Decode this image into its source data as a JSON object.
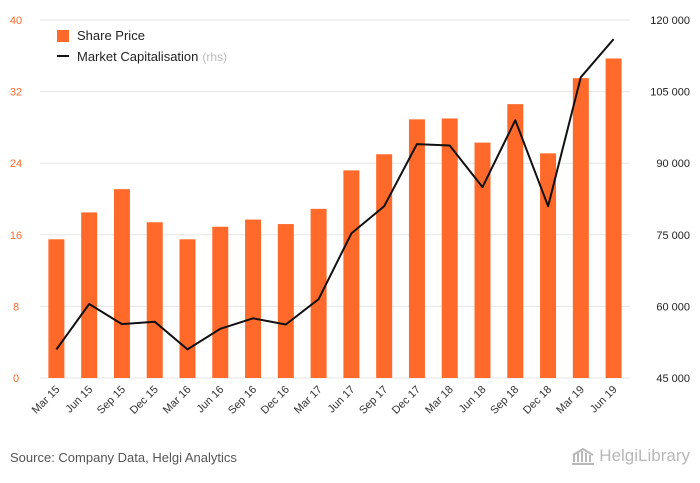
{
  "chart_data": {
    "type": "bar",
    "categories": [
      "Mar 15",
      "Jun 15",
      "Sep 15",
      "Dec 15",
      "Mar 16",
      "Jun 16",
      "Sep 16",
      "Dec 16",
      "Mar 17",
      "Jun 17",
      "Sep 17",
      "Dec 17",
      "Mar 18",
      "Jun 18",
      "Sep 18",
      "Dec 18",
      "Mar 19",
      "Jun 19"
    ],
    "series": [
      {
        "name": "Share Price",
        "type": "bar",
        "axis": "left",
        "color": "#ff6a2b",
        "values": [
          15.5,
          18.5,
          21.1,
          17.4,
          15.5,
          16.9,
          17.7,
          17.2,
          18.9,
          23.2,
          25.0,
          28.9,
          29.0,
          26.3,
          30.6,
          25.1,
          33.5,
          35.7
        ]
      },
      {
        "name": "Market Capitalisation",
        "suffix": "(rhs)",
        "type": "line",
        "axis": "right",
        "color": "#111111",
        "values": [
          51000,
          60500,
          56300,
          56800,
          51000,
          55300,
          57500,
          56200,
          61500,
          75300,
          81000,
          94000,
          93700,
          85000,
          99000,
          81000,
          108000,
          116000
        ]
      }
    ],
    "y_left": {
      "min": 0,
      "max": 40,
      "ticks": [
        0,
        8,
        16,
        24,
        32,
        40
      ],
      "tick_labels": [
        "0",
        "8",
        "16",
        "24",
        "32",
        "40"
      ],
      "tick_color": "#ff6a2b"
    },
    "y_right": {
      "min": 45000,
      "max": 120000,
      "ticks": [
        45000,
        60000,
        75000,
        90000,
        105000,
        120000
      ],
      "tick_labels": [
        "45 000",
        "60 000",
        "75 000",
        "90 000",
        "105 000",
        "120 000"
      ]
    },
    "grid": true,
    "legend": "top-left"
  },
  "source_text": "Source: Company Data, Helgi Analytics",
  "logo_text": "HelgiLibrary"
}
